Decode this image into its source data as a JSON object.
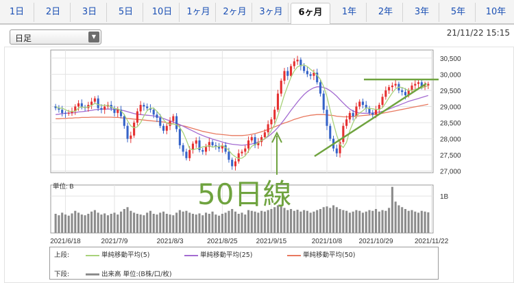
{
  "tabs": [
    {
      "label": "1日",
      "active": false
    },
    {
      "label": "2日",
      "active": false
    },
    {
      "label": "3日",
      "active": false
    },
    {
      "label": "5日",
      "active": false
    },
    {
      "label": "10日",
      "active": false
    },
    {
      "label": "1ヶ月",
      "active": false
    },
    {
      "label": "2ヶ月",
      "active": false
    },
    {
      "label": "3ヶ月",
      "active": false
    },
    {
      "label": "6ヶ月",
      "active": true
    },
    {
      "label": "1年",
      "active": false
    },
    {
      "label": "2年",
      "active": false
    },
    {
      "label": "3年",
      "active": false
    },
    {
      "label": "5年",
      "active": false
    },
    {
      "label": "10年",
      "active": false
    }
  ],
  "period_select": {
    "value": "日足"
  },
  "timestamp": "21/11/22 15:15",
  "annotation": "50日線",
  "volume_unit_label": "単位: B",
  "legend": {
    "upper_label": "上段:",
    "lower_label": "下段:",
    "ma5": "単純移動平均(5)",
    "ma25": "単純移動平均(25)",
    "ma50": "単純移動平均(50)",
    "volume": "出来高 単位:(B株/口/枚)"
  },
  "colors": {
    "up": "#e53030",
    "down": "#3563c8",
    "ma5": "#a8d27a",
    "ma25": "#a36bd1",
    "ma50": "#e8785e",
    "volume": "#8c8c8c",
    "annotation": "#6fa33f"
  },
  "chart_data": {
    "type": "candlestick",
    "price_axis": {
      "ticks": [
        27000,
        27500,
        28000,
        28500,
        29000,
        29500,
        30000,
        30500
      ],
      "tick_labels": [
        "27,000",
        "27,500",
        "28,000",
        "28,500",
        "29,000",
        "29,500",
        "30,000",
        "30,500"
      ],
      "range": [
        26950,
        30750
      ]
    },
    "x_tick_labels": [
      "2021/6/18",
      "2021/7/9",
      "2021/8/3",
      "2021/8/25",
      "2021/9/15",
      "2021/10/8",
      "2021/10/29",
      "2021/11/22"
    ],
    "x_tick_days": [
      3,
      18,
      35,
      51,
      66,
      83,
      98,
      115
    ],
    "volume_axis": {
      "tick_labels": [
        "1B"
      ],
      "ticks": [
        1.0
      ],
      "max": 1.3
    },
    "close": [
      28950,
      28900,
      28800,
      28780,
      28800,
      28850,
      29000,
      29100,
      28980,
      28950,
      29050,
      29150,
      29250,
      28950,
      28900,
      29000,
      29050,
      28950,
      28800,
      28900,
      28700,
      28400,
      28000,
      28100,
      28500,
      28850,
      29050,
      29000,
      28950,
      28900,
      28750,
      28650,
      28400,
      28250,
      28400,
      28550,
      28700,
      28300,
      27800,
      27600,
      27400,
      27650,
      27850,
      27950,
      27650,
      27600,
      27750,
      27900,
      27800,
      27750,
      27700,
      27800,
      27600,
      27350,
      27150,
      27300,
      27550,
      27600,
      27700,
      27950,
      28050,
      27800,
      27900,
      28050,
      28200,
      28450,
      28600,
      28900,
      29400,
      29800,
      30100,
      29950,
      30250,
      30400,
      30450,
      30250,
      30100,
      30000,
      29950,
      30050,
      29750,
      29400,
      28900,
      28400,
      28000,
      27700,
      27550,
      27900,
      28400,
      28600,
      28800,
      28700,
      29000,
      29150,
      29050,
      28950,
      28800,
      28750,
      28900,
      29050,
      29300,
      29500,
      29600,
      29650,
      29700,
      29500,
      29450,
      29350,
      29500,
      29650,
      29700,
      29750,
      29600,
      29650,
      29700
    ],
    "ma5": [
      29000,
      28950,
      28950,
      28900,
      28850,
      28850,
      28850,
      28950,
      28990,
      28960,
      28990,
      29030,
      29100,
      29060,
      29040,
      29040,
      29030,
      28990,
      28930,
      28930,
      28870,
      28750,
      28560,
      28400,
      28340,
      28370,
      28500,
      28700,
      28870,
      28950,
      28950,
      28850,
      28730,
      28590,
      28490,
      28450,
      28460,
      28440,
      28350,
      28190,
      27960,
      27690,
      27660,
      27690,
      27710,
      27750,
      27760,
      27790,
      27740,
      27760,
      27760,
      27790,
      27730,
      27640,
      27520,
      27440,
      27390,
      27400,
      27470,
      27620,
      27770,
      27820,
      27880,
      27950,
      28000,
      28100,
      28260,
      28440,
      28710,
      29030,
      29360,
      29640,
      29900,
      30100,
      30230,
      30270,
      30290,
      30240,
      30150,
      30070,
      29970,
      29840,
      29620,
      29310,
      28890,
      28490,
      28110,
      27830,
      27730,
      27890,
      28250,
      28500,
      28700,
      28800,
      28870,
      28960,
      28940,
      28930,
      28910,
      28910,
      28960,
      29110,
      29270,
      29420,
      29550,
      29600,
      29590,
      29540,
      29500,
      29500,
      29530,
      29560,
      29570,
      29610,
      29650
    ],
    "ma25": [
      28750,
      28760,
      28780,
      28790,
      28800,
      28800,
      28810,
      28830,
      28840,
      28850,
      28870,
      28880,
      28900,
      28910,
      28920,
      28920,
      28920,
      28920,
      28910,
      28900,
      28890,
      28870,
      28840,
      28810,
      28780,
      28760,
      28750,
      28740,
      28730,
      28720,
      28710,
      28690,
      28660,
      28630,
      28590,
      28560,
      28520,
      28480,
      28440,
      28390,
      28340,
      28290,
      28240,
      28190,
      28140,
      28100,
      28060,
      28030,
      27990,
      27960,
      27930,
      27900,
      27870,
      27850,
      27830,
      27820,
      27810,
      27800,
      27810,
      27820,
      27840,
      27870,
      27900,
      27940,
      28000,
      28070,
      28150,
      28240,
      28350,
      28470,
      28600,
      28740,
      28880,
      29010,
      29140,
      29260,
      29370,
      29460,
      29530,
      29580,
      29610,
      29610,
      29590,
      29550,
      29490,
      29410,
      29320,
      29210,
      29110,
      29010,
      28920,
      28860,
      28820,
      28800,
      28790,
      28790,
      28790,
      28800,
      28810,
      28830,
      28850,
      28880,
      28920,
      28960,
      29000,
      29040,
      29080,
      29120,
      29160,
      29190,
      29220,
      29250,
      29280,
      29310,
      29340
    ],
    "ma50": [
      28620,
      28620,
      28630,
      28630,
      28640,
      28640,
      28650,
      28650,
      28660,
      28660,
      28660,
      28670,
      28670,
      28670,
      28670,
      28670,
      28670,
      28670,
      28660,
      28660,
      28650,
      28640,
      28630,
      28620,
      28610,
      28600,
      28590,
      28580,
      28570,
      28560,
      28550,
      28540,
      28530,
      28520,
      28500,
      28480,
      28460,
      28440,
      28420,
      28400,
      28380,
      28350,
      28320,
      28290,
      28260,
      28230,
      28210,
      28190,
      28170,
      28150,
      28140,
      28130,
      28120,
      28110,
      28100,
      28100,
      28100,
      28100,
      28110,
      28120,
      28140,
      28160,
      28190,
      28220,
      28250,
      28290,
      28330,
      28370,
      28410,
      28450,
      28490,
      28520,
      28560,
      28600,
      28630,
      28660,
      28690,
      28710,
      28730,
      28740,
      28750,
      28750,
      28750,
      28740,
      28730,
      28720,
      28700,
      28690,
      28680,
      28680,
      28680,
      28690,
      28700,
      28710,
      28720,
      28730,
      28740,
      28750,
      28760,
      28770,
      28790,
      28810,
      28830,
      28850,
      28870,
      28890,
      28910,
      28930,
      28950,
      28970,
      28990,
      29010,
      29030,
      29050,
      29070
    ],
    "volume": [
      0.52,
      0.48,
      0.55,
      0.5,
      0.47,
      0.53,
      0.6,
      0.55,
      0.5,
      0.48,
      0.52,
      0.58,
      0.62,
      0.55,
      0.5,
      0.53,
      0.48,
      0.52,
      0.55,
      0.5,
      0.58,
      0.65,
      0.7,
      0.6,
      0.55,
      0.52,
      0.5,
      0.48,
      0.55,
      0.6,
      0.52,
      0.5,
      0.55,
      0.58,
      0.52,
      0.5,
      0.48,
      0.55,
      0.62,
      0.58,
      0.6,
      0.55,
      0.52,
      0.5,
      0.53,
      0.48,
      0.55,
      0.52,
      0.58,
      0.5,
      0.47,
      0.52,
      0.55,
      0.6,
      0.65,
      0.58,
      0.52,
      0.55,
      0.5,
      0.62,
      0.6,
      0.58,
      0.55,
      0.6,
      0.58,
      0.62,
      0.65,
      0.7,
      0.75,
      0.72,
      0.68,
      0.62,
      0.65,
      0.6,
      0.63,
      0.58,
      0.62,
      0.6,
      0.55,
      0.58,
      0.62,
      0.65,
      0.7,
      0.72,
      0.68,
      0.75,
      0.7,
      0.65,
      0.62,
      0.6,
      0.55,
      0.58,
      0.62,
      0.6,
      0.55,
      0.58,
      0.62,
      0.6,
      0.65,
      0.58,
      0.62,
      0.6,
      0.68,
      1.25,
      0.85,
      0.75,
      0.7,
      0.65,
      0.6,
      0.62,
      0.58,
      0.55,
      0.6,
      0.58,
      0.56
    ]
  }
}
